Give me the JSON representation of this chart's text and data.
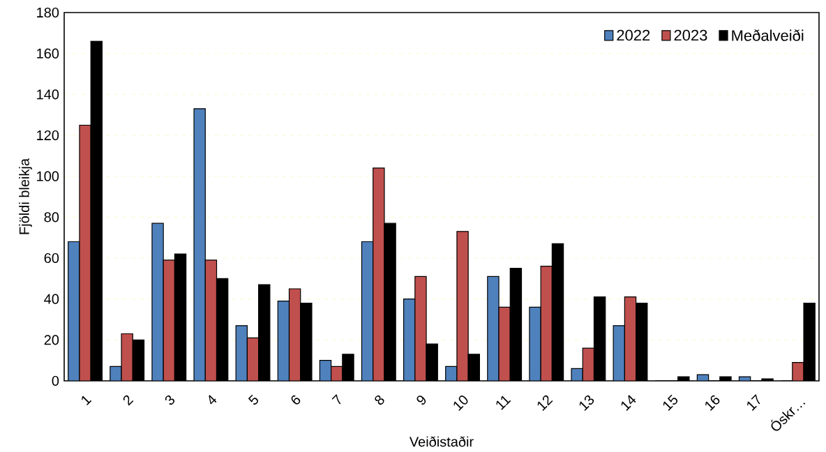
{
  "chart_data": {
    "type": "bar",
    "xlabel": "Veiðistaðir",
    "ylabel": "Fjöldi bleikja",
    "categories": [
      "1",
      "2",
      "3",
      "4",
      "5",
      "6",
      "7",
      "8",
      "9",
      "10",
      "11",
      "12",
      "13",
      "14",
      "15",
      "16",
      "17",
      "Óskr…"
    ],
    "series": [
      {
        "name": "2022",
        "color": "#4f81bd",
        "values": [
          68,
          7,
          77,
          133,
          27,
          39,
          10,
          68,
          40,
          7,
          51,
          36,
          6,
          27,
          0,
          3,
          2,
          0
        ]
      },
      {
        "name": "2023",
        "color": "#c0504d",
        "values": [
          125,
          23,
          59,
          59,
          21,
          45,
          7,
          104,
          51,
          73,
          36,
          56,
          16,
          41,
          0,
          0,
          0,
          9
        ]
      },
      {
        "name": "Meðalveiði",
        "color": "#000000",
        "values": [
          166,
          20,
          62,
          50,
          47,
          38,
          13,
          77,
          18,
          13,
          55,
          67,
          41,
          38,
          2,
          2,
          1,
          38
        ]
      }
    ],
    "ylim": [
      0,
      180
    ],
    "yticks": [
      0,
      20,
      40,
      60,
      80,
      100,
      120,
      140,
      160,
      180
    ],
    "grid": "y",
    "legend": "top right"
  }
}
